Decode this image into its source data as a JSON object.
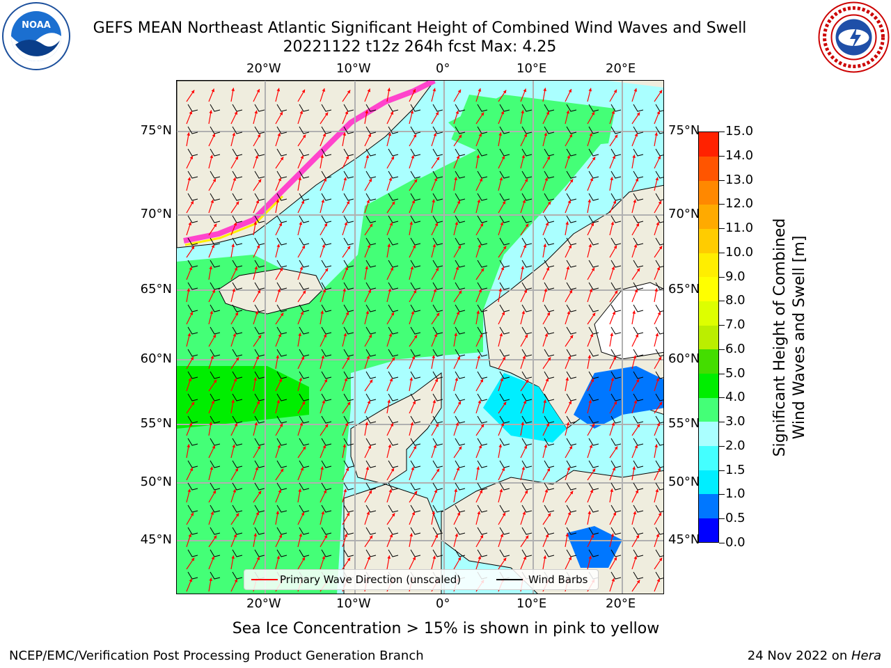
{
  "header": {
    "title_line1": "GEFS MEAN Northeast Atlantic Significant Height of Combined Wind Waves and Swell",
    "title_line2": "20221122 t12z 264h fcst   Max: 4.25"
  },
  "map": {
    "lat_labels": [
      "75°N",
      "70°N",
      "65°N",
      "60°N",
      "55°N",
      "50°N",
      "45°N"
    ],
    "lon_labels": [
      "20°W",
      "10°W",
      "0°",
      "10°E",
      "20°E"
    ],
    "legend": {
      "wave_direction": "Primary Wave Direction (unscaled)",
      "wind_barbs": "Wind Barbs",
      "wave_color": "#ff0000",
      "barb_color": "#000000"
    }
  },
  "colorbar": {
    "label_line1": "Significant Height of Combined",
    "label_line2": "Wind Waves and Swell [m]",
    "ticks": [
      "15.0",
      "14.0",
      "13.0",
      "12.0",
      "11.0",
      "10.0",
      "9.0",
      "8.0",
      "7.0",
      "6.0",
      "5.0",
      "4.0",
      "3.0",
      "2.0",
      "1.5",
      "1.0",
      "0.5",
      "0.0"
    ],
    "colors": [
      "#0000ff",
      "#0077ff",
      "#00eeff",
      "#44ffff",
      "#aaffff",
      "#44ff77",
      "#00ee00",
      "#44dd00",
      "#bbee00",
      "#ddff00",
      "#ffff00",
      "#ffee00",
      "#ffcc00",
      "#ffaa00",
      "#ff8800",
      "#ff5500",
      "#ff2200"
    ]
  },
  "note": "Sea Ice Concentration > 15% is shown in pink to yellow",
  "footer": {
    "left": "NCEP/EMC/Verification Post Processing Product Generation Branch",
    "right_prefix": "24 Nov 2022 on ",
    "right_host": "Hera"
  }
}
